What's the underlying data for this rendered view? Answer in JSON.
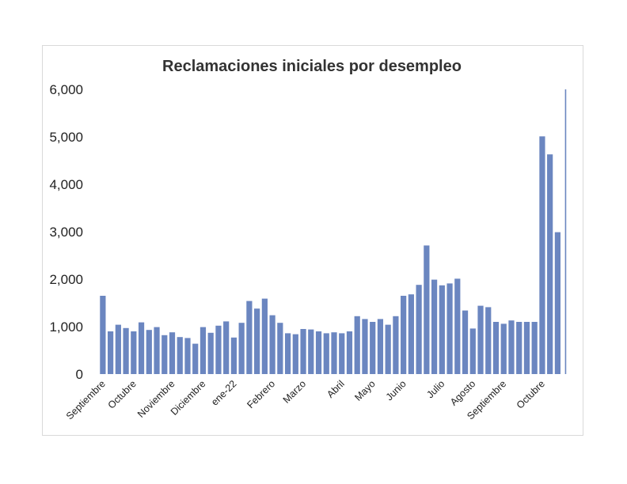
{
  "chart_data": {
    "type": "bar",
    "title": "Reclamaciones iniciales por desempleo",
    "xlabel": "",
    "ylabel": "",
    "ylim": [
      0,
      6000
    ],
    "yticks": [
      "0",
      "1,000",
      "2,000",
      "3,000",
      "4,000",
      "5,000",
      "6,000"
    ],
    "grid": false,
    "legend": "none",
    "bar_color": "#6b86c0",
    "month_labels": [
      {
        "label": "Septiembre",
        "index": 0
      },
      {
        "label": "Octubre",
        "index": 4
      },
      {
        "label": "Noviembre",
        "index": 9
      },
      {
        "label": "Diciembre",
        "index": 13
      },
      {
        "label": "ene-22",
        "index": 17
      },
      {
        "label": "Febrero",
        "index": 22
      },
      {
        "label": "Marzo",
        "index": 26
      },
      {
        "label": "Abril",
        "index": 31
      },
      {
        "label": "Mayo",
        "index": 35
      },
      {
        "label": "Junio",
        "index": 39
      },
      {
        "label": "Julio",
        "index": 44
      },
      {
        "label": "Agosto",
        "index": 48
      },
      {
        "label": "Septiembre",
        "index": 52
      },
      {
        "label": "Octubre",
        "index": 57
      }
    ],
    "values": [
      1650,
      900,
      1040,
      970,
      900,
      1090,
      930,
      990,
      820,
      880,
      780,
      760,
      640,
      990,
      870,
      1020,
      1110,
      770,
      1080,
      1540,
      1380,
      1590,
      1240,
      1080,
      860,
      840,
      950,
      940,
      900,
      860,
      880,
      860,
      900,
      1220,
      1160,
      1100,
      1160,
      1040,
      1220,
      1650,
      1680,
      1880,
      2710,
      1990,
      1870,
      1910,
      2010,
      1340,
      960,
      1440,
      1410,
      1100,
      1060,
      1130,
      1100,
      1100,
      1100,
      5010,
      4630,
      2990,
      6000
    ]
  }
}
